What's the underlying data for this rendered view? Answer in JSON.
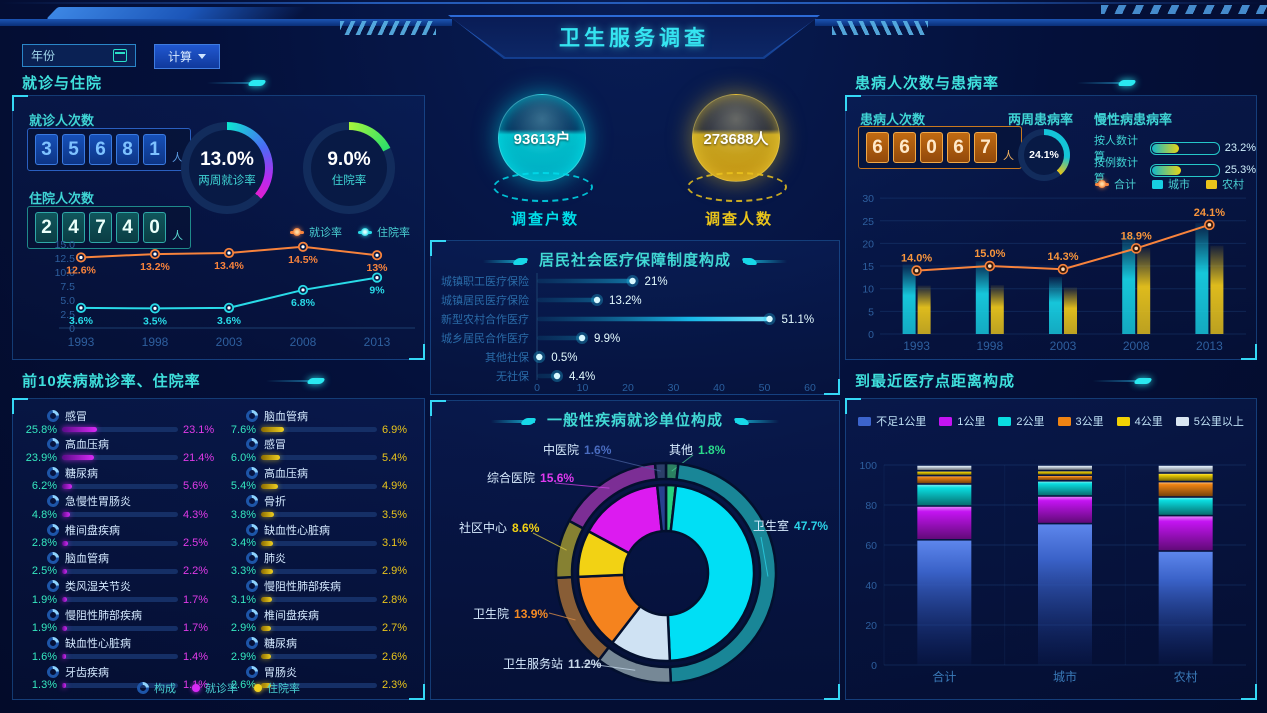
{
  "header": {
    "title": "卫生服务调查"
  },
  "controls": {
    "year_placeholder": "年份",
    "calc_label": "计算"
  },
  "sections": {
    "visits": "就诊与住院",
    "top10": "前10疾病就诊率、住院率",
    "illness": "患病人次数与患病率",
    "distance": "到最近医疗点距离构成"
  },
  "left": {
    "stats": [
      {
        "label": "就诊人次数",
        "digits": "35681",
        "unit": "人",
        "style": "blue"
      },
      {
        "label": "住院人次数",
        "digits": "24740",
        "unit": "人",
        "style": "teal"
      }
    ],
    "gauges": [
      {
        "value": "13.0%",
        "label": "两周就诊率"
      },
      {
        "value": "9.0%",
        "label": "住院率"
      }
    ],
    "legend": [
      {
        "label": "构成"
      },
      {
        "label": "就诊率"
      },
      {
        "label": "住院率"
      }
    ]
  },
  "center": {
    "spheres": [
      {
        "value": "93613户",
        "label": "调查户数",
        "color": "#00dde8"
      },
      {
        "value": "273688人",
        "label": "调查人数",
        "color": "#e9c41b"
      }
    ]
  },
  "right": {
    "stat": {
      "label": "患病人次数",
      "digits": "66067",
      "unit": "人",
      "style": "orange"
    },
    "gauge": {
      "label": "两周患病率",
      "value": "24.1%"
    },
    "chronic": {
      "title": "慢性病患病率",
      "rows": [
        {
          "label": "按人数计算",
          "value": "23.2%",
          "pct": 23.2
        },
        {
          "label": "按例数计算",
          "value": "25.3%",
          "pct": 25.3
        }
      ]
    }
  },
  "top10": {
    "left": [
      {
        "name": "感冒",
        "comp": "25.8%",
        "rate": "23.1%"
      },
      {
        "name": "高血压病",
        "comp": "23.9%",
        "rate": "21.4%"
      },
      {
        "name": "糖尿病",
        "comp": "6.2%",
        "rate": "5.6%"
      },
      {
        "name": "急慢性胃肠炎",
        "comp": "4.8%",
        "rate": "4.3%"
      },
      {
        "name": "椎间盘疾病",
        "comp": "2.8%",
        "rate": "2.5%"
      },
      {
        "name": "脑血管病",
        "comp": "2.5%",
        "rate": "2.2%"
      },
      {
        "name": "类风湿关节炎",
        "comp": "1.9%",
        "rate": "1.7%"
      },
      {
        "name": "慢阻性肺部疾病",
        "comp": "1.9%",
        "rate": "1.7%"
      },
      {
        "name": "缺血性心脏病",
        "comp": "1.6%",
        "rate": "1.4%"
      },
      {
        "name": "牙齿疾病",
        "comp": "1.3%",
        "rate": "1.1%"
      }
    ],
    "right": [
      {
        "name": "脑血管病",
        "comp": "7.6%",
        "rate": "6.9%"
      },
      {
        "name": "感冒",
        "comp": "6.0%",
        "rate": "5.4%"
      },
      {
        "name": "高血压病",
        "comp": "5.4%",
        "rate": "4.9%"
      },
      {
        "name": "骨折",
        "comp": "3.8%",
        "rate": "3.5%"
      },
      {
        "name": "缺血性心脏病",
        "comp": "3.4%",
        "rate": "3.1%"
      },
      {
        "name": "肺炎",
        "comp": "3.3%",
        "rate": "2.9%"
      },
      {
        "name": "慢阻性肺部疾病",
        "comp": "3.1%",
        "rate": "2.8%"
      },
      {
        "name": "椎间盘疾病",
        "comp": "2.9%",
        "rate": "2.7%"
      },
      {
        "name": "糖尿病",
        "comp": "2.9%",
        "rate": "2.6%"
      },
      {
        "name": "胃肠炎",
        "comp": "2.6%",
        "rate": "2.3%"
      }
    ]
  },
  "chart_data": [
    {
      "id": "visits_trend",
      "type": "line",
      "categories": [
        "1993",
        "1998",
        "2003",
        "2008",
        "2013"
      ],
      "ylim": [
        0,
        15
      ],
      "ytick_labels": [
        "0",
        "2.5",
        "5.0",
        "7.5",
        "10.0",
        "12.5",
        "15.0"
      ],
      "series": [
        {
          "name": "就诊率",
          "color": "#f8833c",
          "values": [
            12.6,
            13.2,
            13.4,
            14.5,
            13
          ],
          "labels": [
            "12.6%",
            "13.2%",
            "13.4%",
            "14.5%",
            "13%"
          ]
        },
        {
          "name": "住院率",
          "color": "#29dbe8",
          "values": [
            3.6,
            3.5,
            3.6,
            6.8,
            9
          ],
          "labels": [
            "3.6%",
            "3.5%",
            "3.6%",
            "6.8%",
            "9%"
          ]
        }
      ]
    },
    {
      "id": "insurance",
      "type": "bar",
      "orientation": "horizontal",
      "title": "居民社会医疗保障制度构成",
      "categories": [
        "城镇职工医疗保险",
        "城镇居民医疗保险",
        "新型农村合作医疗",
        "城乡居民合作医疗",
        "其他社保",
        "无社保"
      ],
      "values": [
        21,
        13.2,
        51.1,
        9.9,
        0.5,
        4.4
      ],
      "labels": [
        "21%",
        "13.2%",
        "51.1%",
        "9.9%",
        "0.5%",
        "4.4%"
      ],
      "xlim": [
        0,
        60
      ],
      "xtick_labels": [
        "0",
        "10",
        "20",
        "30",
        "40",
        "50",
        "60"
      ],
      "bar_color": "#23c8f0"
    },
    {
      "id": "illness_trend",
      "type": "combo",
      "categories": [
        "1993",
        "1998",
        "2003",
        "2008",
        "2013"
      ],
      "ylim": [
        0,
        30
      ],
      "ytick_labels": [
        "0",
        "5",
        "10",
        "15",
        "20",
        "25",
        "30"
      ],
      "line": {
        "name": "合计",
        "color": "#f8833c",
        "values": [
          14.0,
          15.0,
          14.3,
          18.9,
          24.1
        ],
        "labels": [
          "14.0%",
          "15.0%",
          "14.3%",
          "18.9%",
          "24.1%"
        ]
      },
      "bars": [
        {
          "name": "城市",
          "color": "#17cfe2",
          "values": [
            15.4,
            16.1,
            12.6,
            22.0,
            24.5
          ]
        },
        {
          "name": "农村",
          "color": "#e9c41b",
          "values": [
            10.7,
            10.8,
            10.3,
            19.0,
            19.5
          ]
        }
      ]
    },
    {
      "id": "unit_pie",
      "type": "pie",
      "title": "一般性疾病就诊单位构成",
      "slices": [
        {
          "name": "其他",
          "label": "1.8%",
          "value": 1.8,
          "color": "#27d17d",
          "value_color": "#2ad98a"
        },
        {
          "name": "卫生室",
          "label": "47.7%",
          "value": 47.7,
          "color": "#00dff5",
          "value_color": "#2bd3e8"
        },
        {
          "name": "卫生服务站",
          "label": "11.2%",
          "value": 11.2,
          "color": "#cfe2f3",
          "value_color": "#c9d9ea"
        },
        {
          "name": "卫生院",
          "label": "13.9%",
          "value": 13.9,
          "color": "#f5831e",
          "value_color": "#f58a24"
        },
        {
          "name": "社区中心",
          "label": "8.6%",
          "value": 8.6,
          "color": "#f2d214",
          "value_color": "#f2d214"
        },
        {
          "name": "综合医院",
          "label": "15.6%",
          "value": 15.6,
          "color": "#dc1bf0",
          "value_color": "#e03af0"
        },
        {
          "name": "中医院",
          "label": "1.6%",
          "value": 1.6,
          "color": "#27418f",
          "value_color": "#4a6cc0"
        }
      ]
    },
    {
      "id": "distance",
      "type": "stacked_bar",
      "categories": [
        "合计",
        "城市",
        "农村"
      ],
      "ylim": [
        0,
        100
      ],
      "ytick_labels": [
        "0",
        "20",
        "40",
        "60",
        "80",
        "100"
      ],
      "series": [
        {
          "name": "不足1公里",
          "color": "#3c64cc",
          "values": [
            62.6,
            70.7,
            57.0
          ]
        },
        {
          "name": "1公里",
          "color": "#c414f2",
          "values": [
            16.9,
            13.8,
            17.7
          ]
        },
        {
          "name": "2公里",
          "color": "#0adde0",
          "values": [
            11.0,
            7.6,
            9.3
          ]
        },
        {
          "name": "3公里",
          "color": "#ef8413",
          "values": [
            4.2,
            2.8,
            7.7
          ]
        },
        {
          "name": "4公里",
          "color": "#f2d204",
          "values": [
            2.4,
            2.3,
            4.3
          ]
        },
        {
          "name": "5公里以上",
          "color": "#d9e6f2",
          "values": [
            2.9,
            2.8,
            4.0
          ]
        }
      ]
    }
  ]
}
